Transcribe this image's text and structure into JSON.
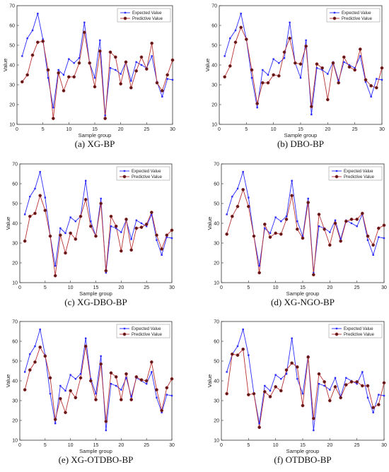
{
  "colors": {
    "expected": "#2a2aff",
    "predictive": "#b83232",
    "marker_fill": "#5a1a1a"
  },
  "shared": {
    "ylabel": "Value",
    "xlabel": "Sample group",
    "xticks": [
      0,
      5,
      10,
      15,
      20,
      25,
      30
    ],
    "yticks": [
      10,
      20,
      30,
      40,
      50,
      60,
      70
    ],
    "legend_expected": "Expected Value",
    "legend_predictive": "Predictive Value"
  },
  "chart_data": [
    {
      "type": "line",
      "caption": "(a)   XG-BP",
      "xlim": [
        0,
        30
      ],
      "ylim": [
        10,
        70
      ],
      "legend": "top-right",
      "x": [
        1,
        2,
        3,
        4,
        5,
        6,
        7,
        8,
        9,
        10,
        11,
        12,
        13,
        14,
        15,
        16,
        17,
        18,
        19,
        20,
        21,
        22,
        23,
        24,
        25,
        26,
        27,
        28,
        29,
        30
      ],
      "series": [
        {
          "name": "Expected Value",
          "values": [
            44.5,
            53.5,
            57.5,
            66,
            53,
            33.5,
            18.5,
            37.5,
            35,
            43,
            41,
            43.5,
            61.5,
            41,
            33.5,
            52.5,
            14.5,
            38.5,
            37.5,
            35.5,
            41.5,
            32,
            41.5,
            40,
            38.5,
            44.5,
            31.5,
            24,
            33,
            32.5
          ]
        },
        {
          "name": "Predictive Value",
          "values": [
            31.5,
            35,
            45,
            51.5,
            52,
            37.5,
            13,
            36,
            27,
            34,
            34,
            41,
            56.5,
            41,
            29,
            47,
            13,
            46.5,
            44,
            30.5,
            41.5,
            28.5,
            37,
            44,
            38,
            51,
            31,
            27,
            35,
            42.5
          ]
        }
      ]
    },
    {
      "type": "line",
      "caption": "(b) DBO-BP",
      "xlim": [
        0,
        30
      ],
      "ylim": [
        10,
        70
      ],
      "legend": "top-right",
      "x": [
        1,
        2,
        3,
        4,
        5,
        6,
        7,
        8,
        9,
        10,
        11,
        12,
        13,
        14,
        15,
        16,
        17,
        18,
        19,
        20,
        21,
        22,
        23,
        24,
        25,
        26,
        27,
        28,
        29,
        30
      ],
      "series": [
        {
          "name": "Expected Value",
          "values": [
            44.5,
            53.5,
            57.5,
            66,
            53,
            33.5,
            18.5,
            37.5,
            35,
            43,
            41,
            43.5,
            61.5,
            41,
            33.5,
            52.5,
            15,
            38.5,
            37.5,
            35.5,
            41.5,
            32,
            41.5,
            40,
            38.5,
            44.5,
            31.5,
            24,
            33,
            32.5
          ]
        },
        {
          "name": "Predictive Value",
          "values": [
            34,
            39.5,
            51.5,
            59,
            53,
            37.5,
            20.5,
            31,
            31,
            35,
            34.5,
            46.5,
            53.5,
            41,
            40.5,
            49.5,
            19,
            40.5,
            38.5,
            22.5,
            41,
            31,
            44,
            39,
            37.5,
            48,
            32.5,
            29.5,
            28.5,
            38.5
          ]
        }
      ]
    },
    {
      "type": "line",
      "caption": "(c) XG-DBO-BP",
      "xlim": [
        0,
        30
      ],
      "ylim": [
        10,
        70
      ],
      "legend": "top-right",
      "x": [
        1,
        2,
        3,
        4,
        5,
        6,
        7,
        8,
        9,
        10,
        11,
        12,
        13,
        14,
        15,
        16,
        17,
        18,
        19,
        20,
        21,
        22,
        23,
        24,
        25,
        26,
        27,
        28,
        29,
        30
      ],
      "series": [
        {
          "name": "Expected Value",
          "values": [
            44.5,
            53.5,
            57.5,
            66,
            53,
            33.5,
            18.5,
            37.5,
            35,
            43,
            41,
            43.5,
            61.5,
            41,
            33.5,
            52.5,
            15,
            38.5,
            37.5,
            35.5,
            41.5,
            32,
            41.5,
            40,
            38.5,
            44.5,
            31.5,
            24,
            33,
            32.5
          ]
        },
        {
          "name": "Predictive Value",
          "values": [
            31,
            43.5,
            45,
            54,
            46.5,
            33.5,
            13.5,
            34,
            25,
            35,
            32,
            43.5,
            52,
            38.5,
            33.5,
            50,
            16,
            43.5,
            38.5,
            26,
            42,
            26.5,
            37.5,
            38,
            39.5,
            45.5,
            34,
            27,
            34,
            36.5
          ]
        }
      ]
    },
    {
      "type": "line",
      "caption": "(d) XG-NGO-BP",
      "xlim": [
        0,
        30
      ],
      "ylim": [
        10,
        70
      ],
      "legend": "top-right",
      "x": [
        1,
        2,
        3,
        4,
        5,
        6,
        7,
        8,
        9,
        10,
        11,
        12,
        13,
        14,
        15,
        16,
        17,
        18,
        19,
        20,
        21,
        22,
        23,
        24,
        25,
        26,
        27,
        28,
        29,
        30
      ],
      "series": [
        {
          "name": "Expected Value",
          "values": [
            44.5,
            53.5,
            57.5,
            66,
            53,
            33.5,
            18.5,
            37.5,
            35,
            43,
            41,
            43.5,
            61.5,
            41,
            33.5,
            52.5,
            15,
            38.5,
            37.5,
            35.5,
            41.5,
            32,
            41.5,
            40,
            38.5,
            44.5,
            31.5,
            24,
            33,
            32.5
          ]
        },
        {
          "name": "Predictive Value",
          "values": [
            34.5,
            43.5,
            48.5,
            57,
            48.5,
            33.5,
            15,
            39.5,
            33,
            35,
            34.5,
            42,
            54,
            37,
            32.5,
            50.5,
            14,
            44.5,
            37,
            29,
            40,
            31,
            41,
            42,
            42,
            45,
            33.5,
            29,
            37.5,
            39
          ]
        }
      ]
    },
    {
      "type": "line",
      "caption": "(e) XG-OTDBO-BP",
      "xlim": [
        0,
        30
      ],
      "ylim": [
        10,
        70
      ],
      "legend": "top-right",
      "x": [
        1,
        2,
        3,
        4,
        5,
        6,
        7,
        8,
        9,
        10,
        11,
        12,
        13,
        14,
        15,
        16,
        17,
        18,
        19,
        20,
        21,
        22,
        23,
        24,
        25,
        26,
        27,
        28,
        29,
        30
      ],
      "series": [
        {
          "name": "Expected Value",
          "values": [
            44.5,
            53.5,
            57.5,
            66,
            53,
            33.5,
            18.5,
            37.5,
            35,
            43,
            41,
            43.5,
            61.5,
            41,
            33.5,
            52.5,
            15,
            38.5,
            37.5,
            35.5,
            41.5,
            32,
            41.5,
            40,
            38.5,
            44.5,
            31.5,
            24,
            33,
            32.5
          ]
        },
        {
          "name": "Predictive Value",
          "values": [
            35.5,
            45.5,
            49.5,
            57,
            52.5,
            41.5,
            20.5,
            31,
            24,
            35,
            31.5,
            41.5,
            57.5,
            40,
            30.5,
            48.5,
            19.5,
            44,
            42,
            30.5,
            43.5,
            30.5,
            42,
            40.5,
            40,
            49.5,
            35.5,
            25,
            36.5,
            41
          ]
        }
      ]
    },
    {
      "type": "line",
      "caption": "(f) OTDBO-BP",
      "xlim": [
        0,
        30
      ],
      "ylim": [
        10,
        70
      ],
      "legend": "top-right",
      "x": [
        1,
        2,
        3,
        4,
        5,
        6,
        7,
        8,
        9,
        10,
        11,
        12,
        13,
        14,
        15,
        16,
        17,
        18,
        19,
        20,
        21,
        22,
        23,
        24,
        25,
        26,
        27,
        28,
        29,
        30
      ],
      "series": [
        {
          "name": "Expected Value",
          "values": [
            44.5,
            53.5,
            57.5,
            66,
            53,
            33.5,
            18.5,
            37.5,
            35,
            43,
            41,
            43.5,
            61.5,
            41,
            33.5,
            52.5,
            15,
            38.5,
            37.5,
            35.5,
            41.5,
            32,
            41.5,
            40,
            38.5,
            44.5,
            31.5,
            24,
            33,
            32.5
          ]
        },
        {
          "name": "Predictive Value",
          "values": [
            33.5,
            53.5,
            53,
            56,
            33,
            33.5,
            16.5,
            34.5,
            32,
            37,
            35,
            45.5,
            49,
            47,
            27.5,
            52,
            21,
            43.5,
            39.5,
            30,
            37,
            31.5,
            38,
            39.5,
            39.5,
            37.5,
            37.5,
            26.5,
            28,
            39
          ]
        }
      ]
    }
  ]
}
